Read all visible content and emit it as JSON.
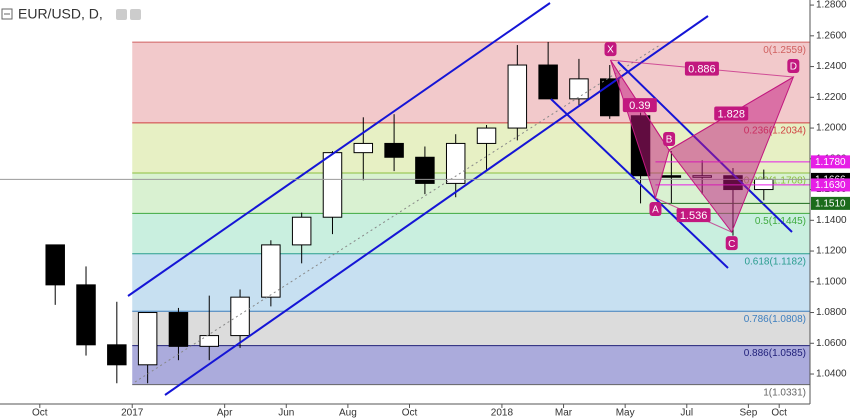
{
  "chart_data": {
    "type": "candlestick",
    "title": "EUR/USD, D,",
    "xlim": [
      "2016-09",
      "2018-11"
    ],
    "ylim": [
      1.0205,
      1.2833
    ],
    "xticks": [
      {
        "value": "2016-10",
        "label": "Oct"
      },
      {
        "value": "2017-01",
        "label": "2017"
      },
      {
        "value": "2017-04",
        "label": "Apr"
      },
      {
        "value": "2017-06",
        "label": "Jun"
      },
      {
        "value": "2017-08",
        "label": "Aug"
      },
      {
        "value": "2017-10",
        "label": "Oct"
      },
      {
        "value": "2018-01",
        "label": "2018"
      },
      {
        "value": "2018-03",
        "label": "Mar"
      },
      {
        "value": "2018-05",
        "label": "May"
      },
      {
        "value": "2018-07",
        "label": "Jul"
      },
      {
        "value": "2018-09",
        "label": "Sep"
      },
      {
        "value": "2018-10",
        "label": "Oct"
      }
    ],
    "yticks": [
      {
        "value": 1.04,
        "label": "1.0400"
      },
      {
        "value": 1.06,
        "label": "1.0600"
      },
      {
        "value": 1.08,
        "label": "1.0800"
      },
      {
        "value": 1.1,
        "label": "1.1000"
      },
      {
        "value": 1.12,
        "label": "1.1200"
      },
      {
        "value": 1.14,
        "label": "1.1400"
      },
      {
        "value": 1.16,
        "label": "1.1600"
      },
      {
        "value": 1.18,
        "label": "1.1800"
      },
      {
        "value": 1.2,
        "label": "1.2000"
      },
      {
        "value": 1.22,
        "label": "1.2200"
      },
      {
        "value": 1.24,
        "label": "1.2400"
      },
      {
        "value": 1.26,
        "label": "1.2600"
      },
      {
        "value": 1.28,
        "label": "1.2800"
      }
    ],
    "x": [
      "2016-10",
      "2016-11",
      "2016-12",
      "2017-01",
      "2017-02",
      "2017-03",
      "2017-04",
      "2017-05",
      "2017-06",
      "2017-07",
      "2017-08",
      "2017-09",
      "2017-10",
      "2017-11",
      "2017-12",
      "2018-01",
      "2018-02",
      "2018-03",
      "2018-04",
      "2018-05",
      "2018-06",
      "2018-07",
      "2018-08",
      "2018-09"
    ],
    "open": [
      1.124,
      1.098,
      1.059,
      1.046,
      1.08,
      1.058,
      1.065,
      1.09,
      1.124,
      1.142,
      1.184,
      1.19,
      1.181,
      1.164,
      1.19,
      1.2,
      1.241,
      1.219,
      1.232,
      1.208,
      1.169,
      1.168,
      1.169,
      1.16
    ],
    "high": [
      1.124,
      1.11,
      1.087,
      1.078,
      1.083,
      1.091,
      1.095,
      1.127,
      1.145,
      1.185,
      1.207,
      1.209,
      1.188,
      1.196,
      1.202,
      1.254,
      1.256,
      1.245,
      1.241,
      1.21,
      1.185,
      1.179,
      1.174,
      1.173
    ],
    "low": [
      1.085,
      1.052,
      1.034,
      1.034,
      1.049,
      1.049,
      1.057,
      1.084,
      1.112,
      1.131,
      1.166,
      1.172,
      1.157,
      1.155,
      1.172,
      1.192,
      1.22,
      1.215,
      1.206,
      1.151,
      1.151,
      1.157,
      1.13,
      1.153
    ],
    "close": [
      1.098,
      1.059,
      1.046,
      1.08,
      1.058,
      1.065,
      1.09,
      1.124,
      1.142,
      1.184,
      1.19,
      1.181,
      1.164,
      1.19,
      1.2,
      1.241,
      1.219,
      1.232,
      1.208,
      1.169,
      1.168,
      1.169,
      1.16,
      1.1666
    ],
    "fib": {
      "start": "2017-01",
      "levels": [
        {
          "value": 1.2559,
          "label": "0(1.2559)",
          "color": "#d06060",
          "fill": "#f2c9cb"
        },
        {
          "value": 1.2034,
          "label": "0.236(1.2034)",
          "color": "#d04040",
          "fill": "#e7f0c4"
        },
        {
          "value": 1.1708,
          "label": "0.382(1.1708)",
          "color": "#8cbf3f",
          "fill": "#d9f1d1"
        },
        {
          "value": 1.1445,
          "label": "0.5(1.1445)",
          "color": "#3faa3f",
          "fill": "#c9efdf"
        },
        {
          "value": 1.1182,
          "label": "0.618(1.1182)",
          "color": "#2a9d8f",
          "fill": "#c7e0f1"
        },
        {
          "value": 1.0808,
          "label": "0.786(1.0808)",
          "color": "#3d7fbf",
          "fill": "#dcdcdc"
        },
        {
          "value": 1.0585,
          "label": "0.886(1.0585)",
          "color": "#20207a",
          "fill": "#ababdc"
        },
        {
          "value": 1.0331,
          "label": "1(1.0331)",
          "color": "#666666",
          "fill": "#ababdc"
        }
      ]
    },
    "levels": [
      {
        "value": 1.178,
        "label": "1.1780",
        "color": "#e61ee6"
      },
      {
        "value": 1.1666,
        "label": "1.1666",
        "color": "#000000"
      },
      {
        "value": 1.163,
        "label": "1.1630",
        "color": "#e61ee6"
      },
      {
        "value": 1.151,
        "label": "1.1510",
        "color": "#1b6b1b"
      }
    ],
    "pattern": {
      "color": "#c2187f",
      "points": [
        {
          "label": "X",
          "date": "2018-04-17",
          "price": 1.2442
        },
        {
          "label": "A",
          "date": "2018-05-31",
          "price": 1.1545
        },
        {
          "label": "B",
          "date": "2018-06-14",
          "price": 1.1857
        },
        {
          "label": "C",
          "date": "2018-08-15",
          "price": 1.1323
        },
        {
          "label": "D",
          "date": "2018-10-15",
          "price": 1.2332
        }
      ],
      "ratios": [
        0.39,
        1.536,
        1.828,
        0.886
      ]
    }
  }
}
